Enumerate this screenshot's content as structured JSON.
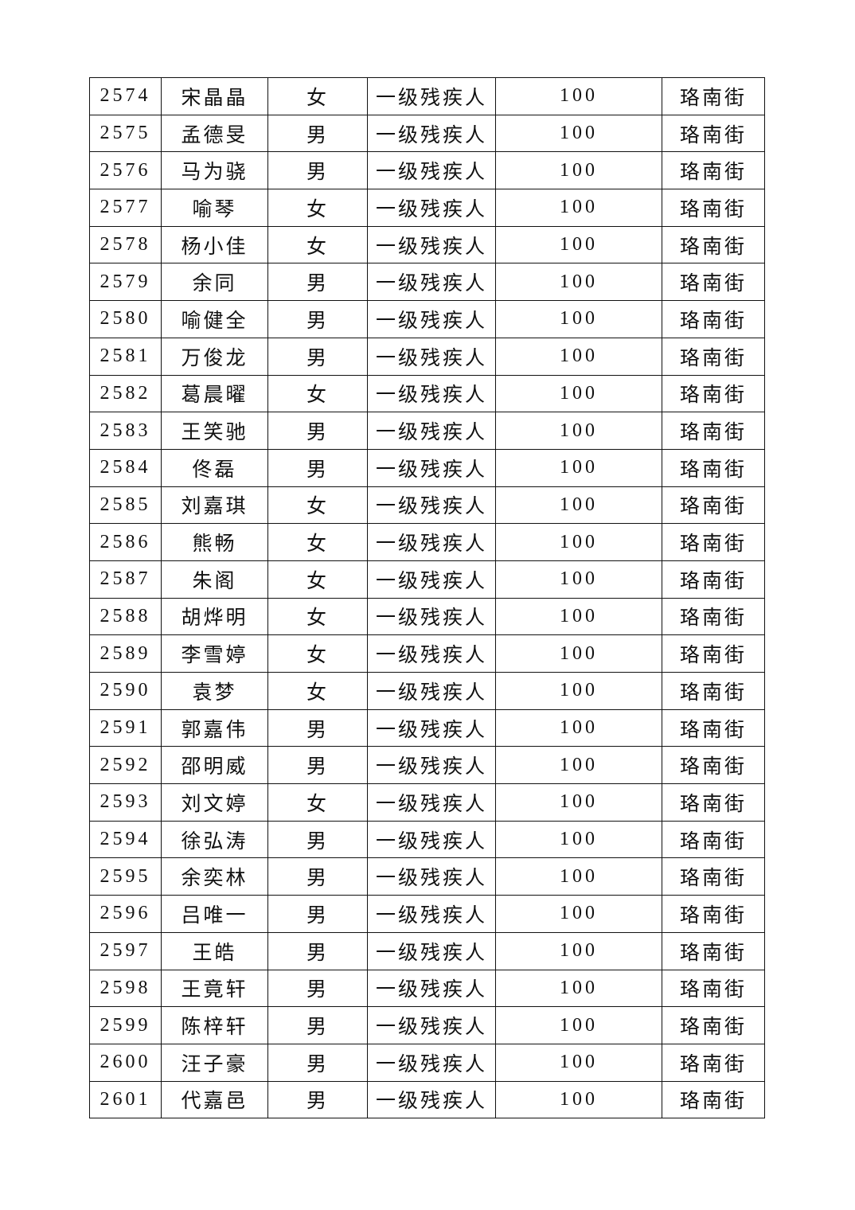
{
  "table": {
    "rows": [
      [
        "2574",
        "宋晶晶",
        "女",
        "一级残疾人",
        "100",
        "珞南街"
      ],
      [
        "2575",
        "孟德旻",
        "男",
        "一级残疾人",
        "100",
        "珞南街"
      ],
      [
        "2576",
        "马为骁",
        "男",
        "一级残疾人",
        "100",
        "珞南街"
      ],
      [
        "2577",
        "喻琴",
        "女",
        "一级残疾人",
        "100",
        "珞南街"
      ],
      [
        "2578",
        "杨小佳",
        "女",
        "一级残疾人",
        "100",
        "珞南街"
      ],
      [
        "2579",
        "余同",
        "男",
        "一级残疾人",
        "100",
        "珞南街"
      ],
      [
        "2580",
        "喻健全",
        "男",
        "一级残疾人",
        "100",
        "珞南街"
      ],
      [
        "2581",
        "万俊龙",
        "男",
        "一级残疾人",
        "100",
        "珞南街"
      ],
      [
        "2582",
        "葛晨曜",
        "女",
        "一级残疾人",
        "100",
        "珞南街"
      ],
      [
        "2583",
        "王笑驰",
        "男",
        "一级残疾人",
        "100",
        "珞南街"
      ],
      [
        "2584",
        "佟磊",
        "男",
        "一级残疾人",
        "100",
        "珞南街"
      ],
      [
        "2585",
        "刘嘉琪",
        "女",
        "一级残疾人",
        "100",
        "珞南街"
      ],
      [
        "2586",
        "熊畅",
        "女",
        "一级残疾人",
        "100",
        "珞南街"
      ],
      [
        "2587",
        "朱阁",
        "女",
        "一级残疾人",
        "100",
        "珞南街"
      ],
      [
        "2588",
        "胡烨明",
        "女",
        "一级残疾人",
        "100",
        "珞南街"
      ],
      [
        "2589",
        "李雪婷",
        "女",
        "一级残疾人",
        "100",
        "珞南街"
      ],
      [
        "2590",
        "袁梦",
        "女",
        "一级残疾人",
        "100",
        "珞南街"
      ],
      [
        "2591",
        "郭嘉伟",
        "男",
        "一级残疾人",
        "100",
        "珞南街"
      ],
      [
        "2592",
        "邵明威",
        "男",
        "一级残疾人",
        "100",
        "珞南街"
      ],
      [
        "2593",
        "刘文婷",
        "女",
        "一级残疾人",
        "100",
        "珞南街"
      ],
      [
        "2594",
        "徐弘涛",
        "男",
        "一级残疾人",
        "100",
        "珞南街"
      ],
      [
        "2595",
        "余奕林",
        "男",
        "一级残疾人",
        "100",
        "珞南街"
      ],
      [
        "2596",
        "吕唯一",
        "男",
        "一级残疾人",
        "100",
        "珞南街"
      ],
      [
        "2597",
        "王皓",
        "男",
        "一级残疾人",
        "100",
        "珞南街"
      ],
      [
        "2598",
        "王竟轩",
        "男",
        "一级残疾人",
        "100",
        "珞南街"
      ],
      [
        "2599",
        "陈梓轩",
        "男",
        "一级残疾人",
        "100",
        "珞南街"
      ],
      [
        "2600",
        "汪子豪",
        "男",
        "一级残疾人",
        "100",
        "珞南街"
      ],
      [
        "2601",
        "代嘉邑",
        "男",
        "一级残疾人",
        "100",
        "珞南街"
      ]
    ]
  }
}
